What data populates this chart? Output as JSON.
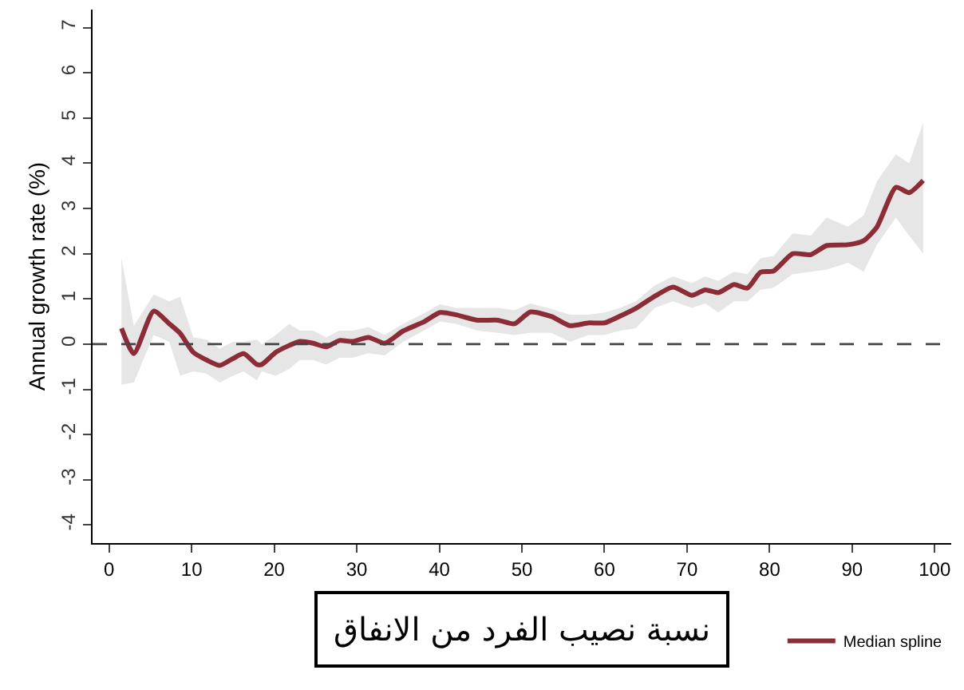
{
  "chart_data": {
    "type": "line",
    "ylabel": "Annual growth rate (%)",
    "xlabel": "نسبة نصيب الفرد من الانفاق",
    "xlim": [
      -2,
      102
    ],
    "xticks": [
      0,
      10,
      20,
      30,
      40,
      50,
      60,
      70,
      80,
      90,
      100
    ],
    "ylim": [
      -4.4,
      7.4
    ],
    "yticks": [
      -4,
      -3,
      -2,
      -1,
      0,
      1,
      2,
      3,
      4,
      5,
      6,
      7
    ],
    "grid": false,
    "legend": "bottom right",
    "ref_lines": [
      {
        "axis": "y",
        "value": 0,
        "color": "#444444",
        "line_style": "dashed"
      }
    ],
    "series": [
      {
        "name": "Median spline",
        "color": "#8b2c36",
        "x": [
          1.5,
          3,
          5.4,
          7.3,
          8.6,
          10.2,
          11.8,
          13.4,
          15,
          16.3,
          17.9,
          18.5,
          20.2,
          21.8,
          23.1,
          24.7,
          26.3,
          27.9,
          29.5,
          31.4,
          33.4,
          35.6,
          38.1,
          40.1,
          42,
          44.6,
          47.1,
          49.1,
          51,
          53.6,
          55.8,
          58.1,
          60,
          61.9,
          63.8,
          66.1,
          68.3,
          70.6,
          72.2,
          73.8,
          75.7,
          77.3,
          78.9,
          80.5,
          82.8,
          85,
          86.9,
          89.5,
          91.4,
          93,
          95.3,
          96.9,
          98.6
        ],
        "values": [
          0.35,
          -0.21,
          0.73,
          0.45,
          0.24,
          -0.18,
          -0.35,
          -0.47,
          -0.32,
          -0.21,
          -0.45,
          -0.45,
          -0.18,
          -0.03,
          0.06,
          0.02,
          -0.06,
          0.08,
          0.06,
          0.15,
          0.02,
          0.29,
          0.49,
          0.7,
          0.65,
          0.53,
          0.53,
          0.45,
          0.71,
          0.61,
          0.41,
          0.47,
          0.47,
          0.62,
          0.79,
          1.06,
          1.26,
          1.08,
          1.2,
          1.14,
          1.32,
          1.24,
          1.59,
          1.62,
          2.0,
          1.98,
          2.18,
          2.2,
          2.29,
          2.59,
          3.47,
          3.35,
          3.62
        ],
        "upper": [
          1.9,
          0.4,
          1.1,
          0.95,
          1.05,
          0.15,
          0.1,
          -0.1,
          0.05,
          0.05,
          0.1,
          0.0,
          0.2,
          0.45,
          0.3,
          0.3,
          0.15,
          0.3,
          0.3,
          0.38,
          0.2,
          0.45,
          0.68,
          0.88,
          0.8,
          0.8,
          0.8,
          0.75,
          0.9,
          0.78,
          0.65,
          0.65,
          0.7,
          0.8,
          0.95,
          1.3,
          1.5,
          1.35,
          1.5,
          1.4,
          1.6,
          1.55,
          1.9,
          1.95,
          2.45,
          2.4,
          2.8,
          2.6,
          2.85,
          3.6,
          4.2,
          4.0,
          4.9
        ],
        "lower": [
          -0.9,
          -0.85,
          0.2,
          0.05,
          -0.7,
          -0.6,
          -0.65,
          -0.85,
          -0.7,
          -0.6,
          -0.8,
          -0.6,
          -0.7,
          -0.55,
          -0.35,
          -0.35,
          -0.45,
          -0.3,
          -0.3,
          -0.2,
          -0.25,
          0.05,
          0.3,
          0.5,
          0.45,
          0.3,
          0.25,
          0.2,
          0.25,
          0.25,
          0.05,
          0.2,
          0.2,
          0.3,
          0.35,
          0.8,
          0.95,
          0.8,
          0.9,
          0.7,
          0.95,
          0.95,
          1.2,
          1.25,
          1.55,
          1.6,
          1.65,
          1.8,
          1.6,
          2.2,
          2.8,
          2.4,
          2.0
        ]
      }
    ]
  }
}
